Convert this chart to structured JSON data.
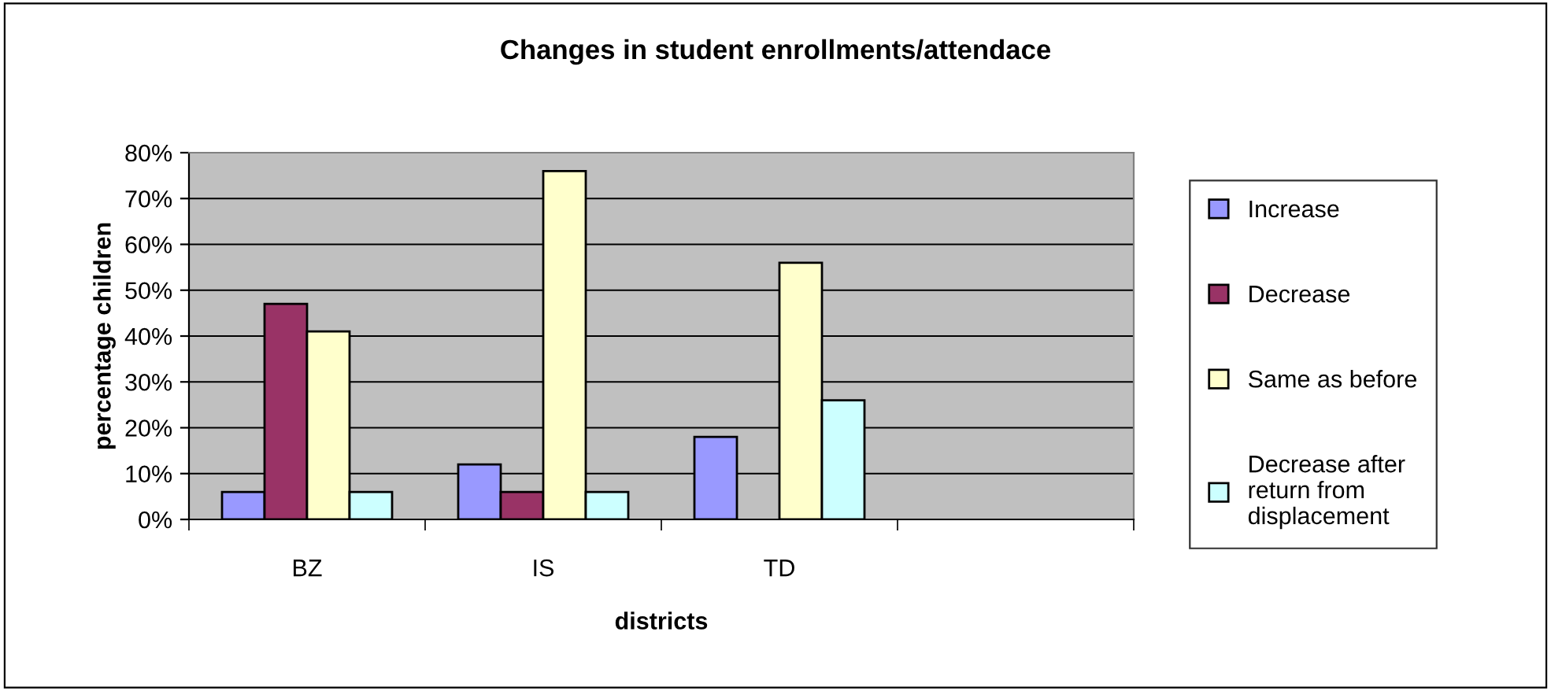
{
  "chart_data": {
    "type": "bar",
    "title": "Changes in student enrollments/attendace",
    "xlabel": "districts",
    "ylabel": "percentage children",
    "categories": [
      "BZ",
      "IS",
      "TD",
      null
    ],
    "series": [
      {
        "name": "Increase",
        "color": "#9999ff",
        "values": [
          6,
          12,
          18,
          null
        ]
      },
      {
        "name": "Decrease",
        "color": "#993366",
        "values": [
          47,
          6,
          null,
          null
        ]
      },
      {
        "name": "Same as before",
        "color": "#ffffcc",
        "values": [
          41,
          76,
          56,
          null
        ]
      },
      {
        "name": "Decrease after return from displacement",
        "color": "#ccffff",
        "values": [
          6,
          6,
          26,
          null
        ]
      }
    ],
    "ylim": [
      0,
      80
    ],
    "yticks": [
      {
        "value": 0,
        "label": "0%"
      },
      {
        "value": 10,
        "label": "10%"
      },
      {
        "value": 20,
        "label": "20%"
      },
      {
        "value": 30,
        "label": "30%"
      },
      {
        "value": 40,
        "label": "40%"
      },
      {
        "value": 50,
        "label": "50%"
      },
      {
        "value": 60,
        "label": "60%"
      },
      {
        "value": 70,
        "label": "70%"
      },
      {
        "value": 80,
        "label": "80%"
      }
    ],
    "grid": "y",
    "legend": "right"
  }
}
